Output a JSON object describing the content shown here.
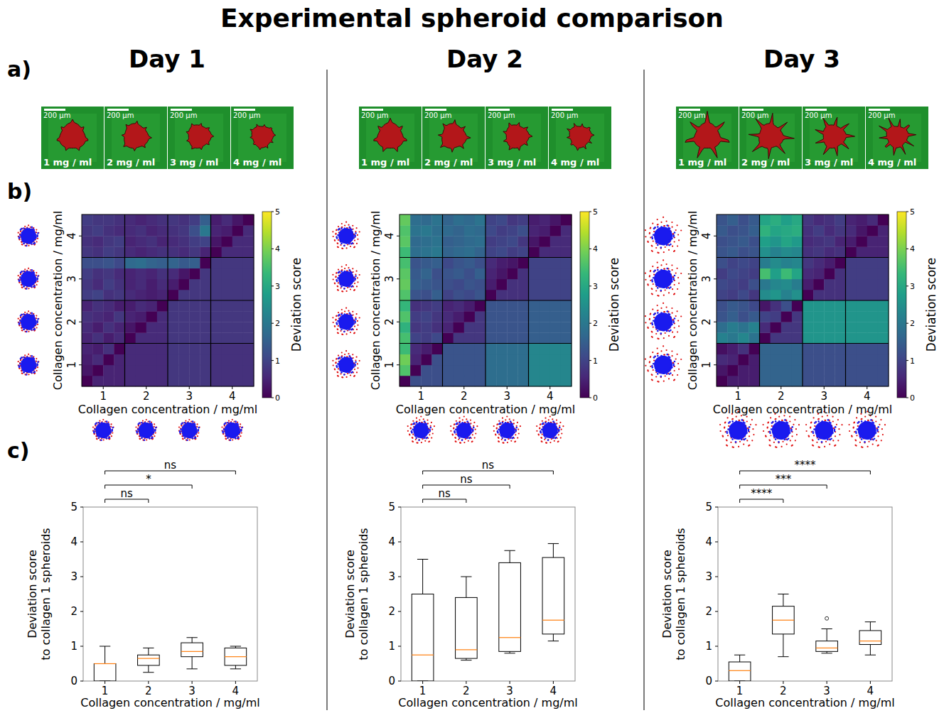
{
  "title": "Experimental spheroid comparison",
  "panel_labels": [
    "a)",
    "b)",
    "c)"
  ],
  "scale_bar": "200 µm",
  "days": [
    {
      "title": "Day 1",
      "image_labels": [
        "1 mg / ml",
        "2 mg / ml",
        "3 mg / ml",
        "4 mg / ml"
      ]
    },
    {
      "title": "Day 2",
      "image_labels": [
        "1 mg / ml",
        "2 mg / ml",
        "3 mg / ml",
        "4 mg / ml"
      ]
    },
    {
      "title": "Day 3",
      "image_labels": [
        "1 mg / ml",
        "2 mg / ml",
        "3 mg / ml",
        "4 mg / ml"
      ]
    }
  ],
  "chart_data": [
    {
      "type": "heatmap",
      "xlabel": "Collagen concentration / mg/ml",
      "ylabel": "Collagen concentration / mg/ml",
      "xlim": [
        0.5,
        4.5
      ],
      "ylim": [
        0.5,
        4.5
      ],
      "xticks": [
        1,
        2,
        3,
        4
      ],
      "yticks": [
        1,
        2,
        3,
        4
      ],
      "colorbar": {
        "label": "Deviation score",
        "range": [
          0,
          5
        ],
        "ticks": [
          0,
          1,
          2,
          3,
          4,
          5
        ]
      },
      "z": [
        [
          0,
          0.5,
          0.5,
          0.5,
          0.6,
          0.6,
          0.6,
          0.6,
          0.8,
          0.8,
          0.8,
          0.8,
          0.7,
          0.7,
          0.7,
          0.7
        ],
        [
          0.3,
          0,
          0.5,
          0.5,
          0.6,
          0.6,
          0.6,
          0.6,
          0.8,
          0.8,
          0.8,
          0.8,
          0.7,
          0.7,
          0.7,
          0.7
        ],
        [
          0.4,
          0.6,
          0,
          0.5,
          0.6,
          0.6,
          0.6,
          0.6,
          0.8,
          0.8,
          0.8,
          0.8,
          0.7,
          0.7,
          0.7,
          0.7
        ],
        [
          0.5,
          0.4,
          0.7,
          0,
          0.6,
          0.6,
          0.6,
          0.6,
          0.8,
          0.8,
          0.8,
          0.8,
          0.7,
          0.7,
          0.7,
          0.7
        ],
        [
          0.5,
          0.7,
          0.4,
          0.6,
          0,
          0.6,
          0.6,
          0.6,
          0.8,
          0.8,
          0.8,
          0.8,
          0.8,
          0.8,
          0.8,
          0.8
        ],
        [
          0.6,
          0.4,
          0.7,
          0.5,
          0.3,
          0,
          0.6,
          0.6,
          0.8,
          0.8,
          0.8,
          0.8,
          0.8,
          0.8,
          0.8,
          0.8
        ],
        [
          0.7,
          0.6,
          0.5,
          0.8,
          0.5,
          0.4,
          0,
          0.6,
          0.8,
          0.8,
          0.8,
          0.8,
          0.8,
          0.8,
          0.8,
          0.8
        ],
        [
          0.5,
          0.7,
          0.6,
          0.4,
          0.4,
          0.6,
          0.5,
          0,
          0.8,
          0.8,
          0.8,
          0.8,
          0.8,
          0.8,
          0.8,
          0.8
        ],
        [
          0.9,
          1.0,
          0.7,
          0.8,
          0.6,
          0.5,
          0.4,
          0.5,
          0,
          0.8,
          0.8,
          0.8,
          0.8,
          0.8,
          0.8,
          0.8
        ],
        [
          0.8,
          0.6,
          0.9,
          0.7,
          0.5,
          0.6,
          0.4,
          0.6,
          0.4,
          0,
          0.8,
          0.8,
          0.8,
          0.8,
          0.8,
          0.8
        ],
        [
          0.9,
          0.7,
          0.8,
          0.6,
          0.5,
          0.6,
          0.5,
          0.7,
          0.6,
          0.3,
          0,
          0.8,
          0.8,
          0.8,
          0.8,
          0.8
        ],
        [
          1.2,
          1.2,
          1.3,
          1.1,
          1.7,
          1.8,
          1.6,
          1.5,
          1.6,
          1.4,
          1.5,
          0,
          0.8,
          0.8,
          0.8,
          0.8
        ],
        [
          0.8,
          0.7,
          0.9,
          0.8,
          0.6,
          0.5,
          0.6,
          0.7,
          0.7,
          0.6,
          0.8,
          0.5,
          0,
          0.6,
          0.6,
          0.6
        ],
        [
          0.7,
          0.6,
          0.8,
          0.9,
          0.5,
          0.6,
          0.7,
          0.5,
          0.6,
          0.7,
          0.9,
          1.0,
          0.3,
          0,
          0.6,
          0.6
        ],
        [
          0.8,
          0.9,
          0.7,
          0.6,
          0.6,
          0.7,
          0.5,
          0.6,
          0.7,
          0.8,
          1.2,
          2.0,
          0.5,
          0.4,
          0,
          0.6
        ],
        [
          0.9,
          0.8,
          0.8,
          0.7,
          0.6,
          0.5,
          0.6,
          0.7,
          0.8,
          0.7,
          0.9,
          1.5,
          0.4,
          0.6,
          0.3,
          0
        ]
      ]
    },
    {
      "type": "heatmap",
      "xlabel": "Collagen concentration / mg/ml",
      "ylabel": "Collagen concentration / mg/ml",
      "xlim": [
        0.5,
        4.5
      ],
      "ylim": [
        0.5,
        4.5
      ],
      "xticks": [
        1,
        2,
        3,
        4
      ],
      "yticks": [
        1,
        2,
        3,
        4
      ],
      "colorbar": {
        "label": "Deviation score",
        "range": [
          0,
          5
        ],
        "ticks": [
          0,
          1,
          2,
          3,
          4,
          5
        ]
      },
      "z": [
        [
          0,
          1.2,
          1.2,
          1.2,
          1.3,
          1.3,
          1.3,
          1.3,
          1.8,
          1.8,
          1.8,
          1.8,
          2.3,
          2.3,
          2.3,
          2.3
        ],
        [
          3.6,
          0,
          1.2,
          1.2,
          1.3,
          1.3,
          1.3,
          1.3,
          1.8,
          1.8,
          1.8,
          1.8,
          2.3,
          2.3,
          2.3,
          2.3
        ],
        [
          3.9,
          0.5,
          0,
          1.2,
          1.3,
          1.3,
          1.3,
          1.3,
          1.8,
          1.8,
          1.8,
          1.8,
          2.3,
          2.3,
          2.3,
          2.3
        ],
        [
          3.4,
          0.6,
          0.4,
          0,
          1.3,
          1.3,
          1.3,
          1.3,
          1.8,
          1.8,
          1.8,
          1.8,
          2.3,
          2.3,
          2.3,
          2.3
        ],
        [
          3.5,
          1.0,
          0.9,
          1.1,
          0,
          0.8,
          0.8,
          0.8,
          1.3,
          1.3,
          1.3,
          1.3,
          1.5,
          1.5,
          1.5,
          1.5
        ],
        [
          3.2,
          0.8,
          0.9,
          0.7,
          0.5,
          0,
          0.8,
          0.8,
          1.3,
          1.3,
          1.3,
          1.3,
          1.5,
          1.5,
          1.5,
          1.5
        ],
        [
          3.6,
          0.9,
          1.0,
          0.8,
          0.6,
          0.4,
          0,
          0.8,
          1.3,
          1.3,
          1.3,
          1.3,
          1.5,
          1.5,
          1.5,
          1.5
        ],
        [
          3.3,
          0.7,
          0.8,
          0.9,
          0.5,
          0.6,
          0.4,
          0,
          1.3,
          1.3,
          1.3,
          1.3,
          1.5,
          1.5,
          1.5,
          1.5
        ],
        [
          3.6,
          1.3,
          1.2,
          1.5,
          1.0,
          1.2,
          1.1,
          1.3,
          0,
          0.7,
          0.7,
          0.7,
          1.0,
          1.0,
          1.0,
          1.0
        ],
        [
          3.8,
          1.5,
          1.4,
          1.3,
          1.2,
          1.1,
          1.3,
          1.2,
          0.4,
          0,
          0.7,
          0.7,
          1.0,
          1.0,
          1.0,
          1.0
        ],
        [
          3.7,
          1.4,
          1.6,
          1.2,
          1.3,
          1.4,
          1.2,
          1.5,
          0.5,
          0.3,
          0,
          0.7,
          1.0,
          1.0,
          1.0,
          1.0
        ],
        [
          3.5,
          1.3,
          1.4,
          1.5,
          1.1,
          1.3,
          1.4,
          1.2,
          0.6,
          0.4,
          0.3,
          0,
          1.0,
          1.0,
          1.0,
          1.0
        ],
        [
          3.4,
          1.8,
          1.9,
          2.0,
          1.6,
          1.7,
          1.8,
          1.6,
          1.0,
          1.1,
          0.9,
          1.0,
          0,
          0.6,
          0.6,
          0.6
        ],
        [
          3.7,
          1.7,
          1.8,
          1.9,
          1.5,
          1.6,
          1.7,
          1.8,
          0.9,
          1.0,
          1.1,
          0.8,
          0.3,
          0,
          0.6,
          0.6
        ],
        [
          3.6,
          1.9,
          2.0,
          1.8,
          1.7,
          1.6,
          1.8,
          1.7,
          1.1,
          0.9,
          1.0,
          1.2,
          0.5,
          0.4,
          0,
          0.6
        ],
        [
          3.8,
          1.8,
          1.7,
          1.9,
          1.6,
          1.8,
          1.7,
          1.9,
          1.0,
          1.1,
          0.8,
          0.9,
          0.4,
          0.5,
          0.3,
          0
        ]
      ]
    },
    {
      "type": "heatmap",
      "xlabel": "Collagen concentration / mg/ml",
      "ylabel": "Collagen concentration / mg/ml",
      "xlim": [
        0.5,
        4.5
      ],
      "ylim": [
        0.5,
        4.5
      ],
      "xticks": [
        1,
        2,
        3,
        4
      ],
      "yticks": [
        1,
        2,
        3,
        4
      ],
      "colorbar": {
        "label": "Deviation score",
        "range": [
          0,
          5
        ],
        "ticks": [
          0,
          1,
          2,
          3,
          4,
          5
        ]
      },
      "z": [
        [
          0,
          0.4,
          0.4,
          0.4,
          1.6,
          1.6,
          1.6,
          1.6,
          1.2,
          1.2,
          1.2,
          1.2,
          1.2,
          1.2,
          1.2,
          1.2
        ],
        [
          0.3,
          0,
          0.4,
          0.4,
          1.6,
          1.6,
          1.6,
          1.6,
          1.2,
          1.2,
          1.2,
          1.2,
          1.2,
          1.2,
          1.2,
          1.2
        ],
        [
          0.6,
          0.5,
          0,
          0.4,
          1.6,
          1.6,
          1.6,
          1.6,
          1.2,
          1.2,
          1.2,
          1.2,
          1.2,
          1.2,
          1.2,
          1.2
        ],
        [
          0.2,
          0.4,
          0.7,
          0,
          1.6,
          1.6,
          1.6,
          1.6,
          1.2,
          1.2,
          1.2,
          1.2,
          1.2,
          1.2,
          1.2,
          1.2
        ],
        [
          2.2,
          2.0,
          2.3,
          1.9,
          0,
          0.8,
          0.8,
          0.8,
          2.6,
          2.6,
          2.6,
          2.6,
          2.6,
          2.6,
          2.6,
          2.6
        ],
        [
          1.8,
          2.1,
          1.9,
          2.2,
          0.6,
          0,
          0.8,
          0.8,
          2.6,
          2.6,
          2.6,
          2.6,
          2.6,
          2.6,
          2.6,
          2.6
        ],
        [
          1.3,
          1.5,
          1.2,
          1.4,
          1.0,
          0.9,
          0,
          0.8,
          2.6,
          2.6,
          2.6,
          2.6,
          2.6,
          2.6,
          2.6,
          2.6
        ],
        [
          1.2,
          1.4,
          1.3,
          1.1,
          0.3,
          0.7,
          1.2,
          0,
          2.6,
          2.6,
          2.6,
          2.6,
          2.6,
          2.6,
          2.6,
          2.6
        ],
        [
          1.0,
          0.9,
          1.1,
          0.8,
          2.4,
          2.6,
          2.2,
          2.5,
          0,
          0.7,
          0.7,
          0.7,
          0.9,
          0.9,
          0.9,
          0.9
        ],
        [
          1.1,
          1.0,
          0.9,
          1.2,
          2.0,
          2.3,
          2.4,
          2.1,
          0.4,
          0,
          0.7,
          0.7,
          0.9,
          0.9,
          0.9,
          0.9
        ],
        [
          0.9,
          1.1,
          1.0,
          0.9,
          3.5,
          2.8,
          3.4,
          2.9,
          0.6,
          0.5,
          0,
          0.7,
          0.9,
          0.9,
          0.9,
          0.9
        ],
        [
          1.2,
          1.0,
          1.1,
          1.0,
          2.1,
          2.4,
          2.2,
          2.3,
          0.8,
          0.6,
          0.4,
          0,
          0.9,
          0.9,
          0.9,
          0.9
        ],
        [
          1.3,
          1.4,
          1.2,
          1.3,
          2.5,
          2.2,
          2.4,
          2.3,
          0.7,
          0.8,
          0.6,
          0.7,
          0,
          0.5,
          0.5,
          0.5
        ],
        [
          1.2,
          1.3,
          1.4,
          1.2,
          2.8,
          2.6,
          2.9,
          2.7,
          0.6,
          0.7,
          0.8,
          0.5,
          0.4,
          0,
          0.5,
          0.5
        ],
        [
          1.4,
          1.2,
          1.3,
          1.5,
          3.2,
          2.9,
          3.0,
          3.1,
          0.7,
          0.9,
          0.6,
          0.8,
          0.6,
          0.3,
          0,
          0.5
        ],
        [
          1.3,
          1.5,
          1.2,
          1.4,
          2.9,
          3.1,
          2.8,
          3.0,
          0.8,
          0.6,
          0.7,
          0.9,
          0.5,
          0.4,
          0.6,
          0
        ]
      ]
    },
    {
      "type": "box",
      "xlabel": "Collagen concentration / mg/ml",
      "ylabel": [
        "Deviation score",
        "to collagen 1 spheroids"
      ],
      "categories": [
        1,
        2,
        3,
        4
      ],
      "ylim": [
        0,
        5
      ],
      "yticks": [
        0,
        1,
        2,
        3,
        4,
        5
      ],
      "boxes": [
        {
          "whisker_low": 0,
          "q1": 0,
          "median": 0.5,
          "q3": 0.5,
          "whisker_high": 1.0,
          "outliers": []
        },
        {
          "whisker_low": 0.25,
          "q1": 0.45,
          "median": 0.65,
          "q3": 0.75,
          "whisker_high": 0.95,
          "outliers": []
        },
        {
          "whisker_low": 0.35,
          "q1": 0.7,
          "median": 0.85,
          "q3": 1.1,
          "whisker_high": 1.25,
          "outliers": []
        },
        {
          "whisker_low": 0.35,
          "q1": 0.45,
          "median": 0.7,
          "q3": 0.95,
          "whisker_high": 1.0,
          "outliers": []
        }
      ],
      "brackets": [
        {
          "from": 1,
          "to": 2,
          "label": "ns"
        },
        {
          "from": 1,
          "to": 3,
          "label": "*"
        },
        {
          "from": 1,
          "to": 4,
          "label": "ns"
        }
      ]
    },
    {
      "type": "box",
      "xlabel": "Collagen concentration / mg/ml",
      "ylabel": [
        "Deviation score",
        "to collagen 1 spheroids"
      ],
      "categories": [
        1,
        2,
        3,
        4
      ],
      "ylim": [
        0,
        5
      ],
      "yticks": [
        0,
        1,
        2,
        3,
        4,
        5
      ],
      "boxes": [
        {
          "whisker_low": 0,
          "q1": 0,
          "median": 0.75,
          "q3": 2.5,
          "whisker_high": 3.5,
          "outliers": []
        },
        {
          "whisker_low": 0.6,
          "q1": 0.65,
          "median": 0.9,
          "q3": 2.4,
          "whisker_high": 3.0,
          "outliers": []
        },
        {
          "whisker_low": 0.8,
          "q1": 0.85,
          "median": 1.25,
          "q3": 3.4,
          "whisker_high": 3.75,
          "outliers": []
        },
        {
          "whisker_low": 1.15,
          "q1": 1.35,
          "median": 1.75,
          "q3": 3.55,
          "whisker_high": 3.95,
          "outliers": []
        }
      ],
      "brackets": [
        {
          "from": 1,
          "to": 2,
          "label": "ns"
        },
        {
          "from": 1,
          "to": 3,
          "label": "ns"
        },
        {
          "from": 1,
          "to": 4,
          "label": "ns"
        }
      ]
    },
    {
      "type": "box",
      "xlabel": "Collagen concentration / mg/ml",
      "ylabel": [
        "Deviation score",
        "to collagen 1 spheroids"
      ],
      "categories": [
        1,
        2,
        3,
        4
      ],
      "ylim": [
        0,
        5
      ],
      "yticks": [
        0,
        1,
        2,
        3,
        4,
        5
      ],
      "boxes": [
        {
          "whisker_low": 0,
          "q1": 0,
          "median": 0.3,
          "q3": 0.55,
          "whisker_high": 0.75,
          "outliers": []
        },
        {
          "whisker_low": 0.7,
          "q1": 1.35,
          "median": 1.75,
          "q3": 2.15,
          "whisker_high": 2.5,
          "outliers": []
        },
        {
          "whisker_low": 0.8,
          "q1": 0.85,
          "median": 0.95,
          "q3": 1.15,
          "whisker_high": 1.5,
          "outliers": [
            1.8
          ]
        },
        {
          "whisker_low": 0.75,
          "q1": 1.05,
          "median": 1.15,
          "q3": 1.45,
          "whisker_high": 1.7,
          "outliers": []
        }
      ],
      "brackets": [
        {
          "from": 1,
          "to": 2,
          "label": "****"
        },
        {
          "from": 1,
          "to": 3,
          "label": "***"
        },
        {
          "from": 1,
          "to": 4,
          "label": "****"
        }
      ]
    }
  ]
}
